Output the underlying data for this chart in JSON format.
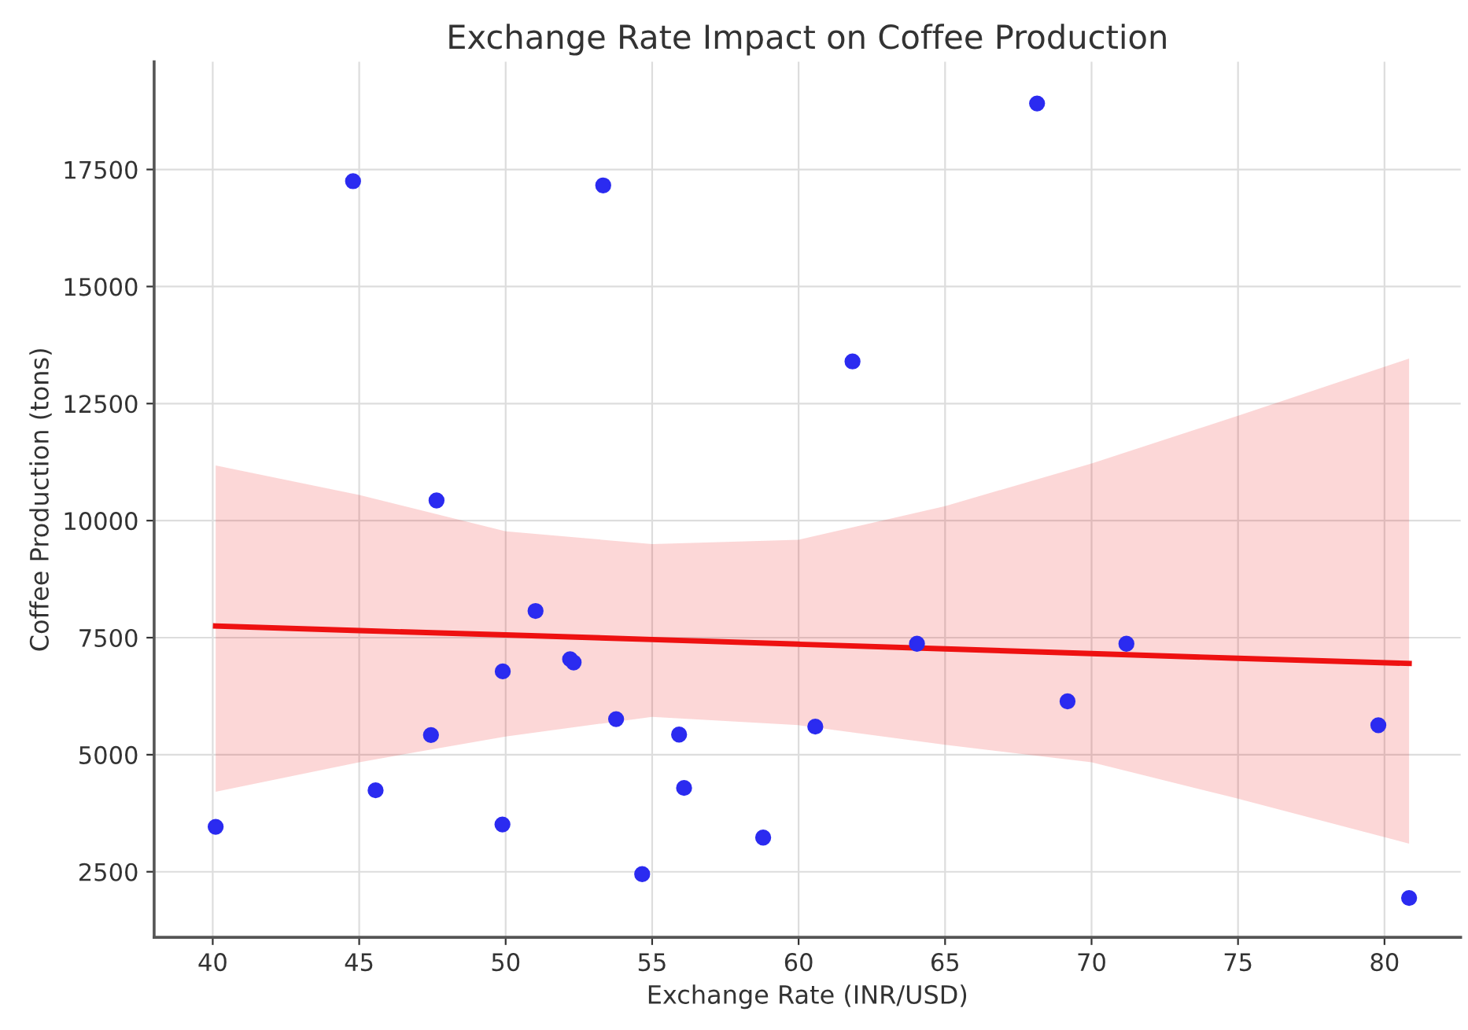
{
  "chart_data": {
    "type": "scatter",
    "title": "Exchange Rate Impact on Coffee Production",
    "xlabel": "Exchange Rate (INR/USD)",
    "ylabel": "Coffee Production (tons)",
    "xlim": [
      38,
      82.6
    ],
    "ylim": [
      1100,
      19800
    ],
    "xticks": [
      40,
      45,
      50,
      55,
      60,
      65,
      70,
      75,
      80
    ],
    "yticks": [
      2500,
      5000,
      7500,
      10000,
      12500,
      15000,
      17500
    ],
    "grid": true,
    "marker": "circle",
    "series": [
      {
        "color": "#2b2bf0",
        "x": [
          40.1,
          44.79,
          47.64,
          45.56,
          47.45,
          49.9,
          49.89,
          51.02,
          52.2,
          52.32,
          53.33,
          53.77,
          54.66,
          55.92,
          56.09,
          58.79,
          60.57,
          61.84,
          68.14,
          64.04,
          71.19,
          69.18,
          79.79,
          80.84
        ],
        "values": [
          3460,
          17250,
          10430,
          4240,
          5420,
          6780,
          3510,
          8070,
          7040,
          6970,
          17160,
          5760,
          2450,
          5430,
          4290,
          3230,
          5600,
          13400,
          18910,
          7370,
          7370,
          6140,
          5630,
          1940
        ]
      },
      {
        "type": "line",
        "color": "#ee1111",
        "marker": "none",
        "x": [
          40.1,
          45,
          50,
          55,
          60,
          65,
          70,
          75,
          80.84
        ],
        "values": [
          7750,
          7650,
          7560,
          7460,
          7360,
          7260,
          7160,
          7060,
          6950
        ],
        "lower": [
          4210,
          4840,
          5390,
          5810,
          5630,
          5210,
          4840,
          4060,
          3100
        ],
        "upper": [
          11180,
          10550,
          9770,
          9500,
          9590,
          10310,
          11220,
          12240,
          13460
        ]
      }
    ]
  }
}
